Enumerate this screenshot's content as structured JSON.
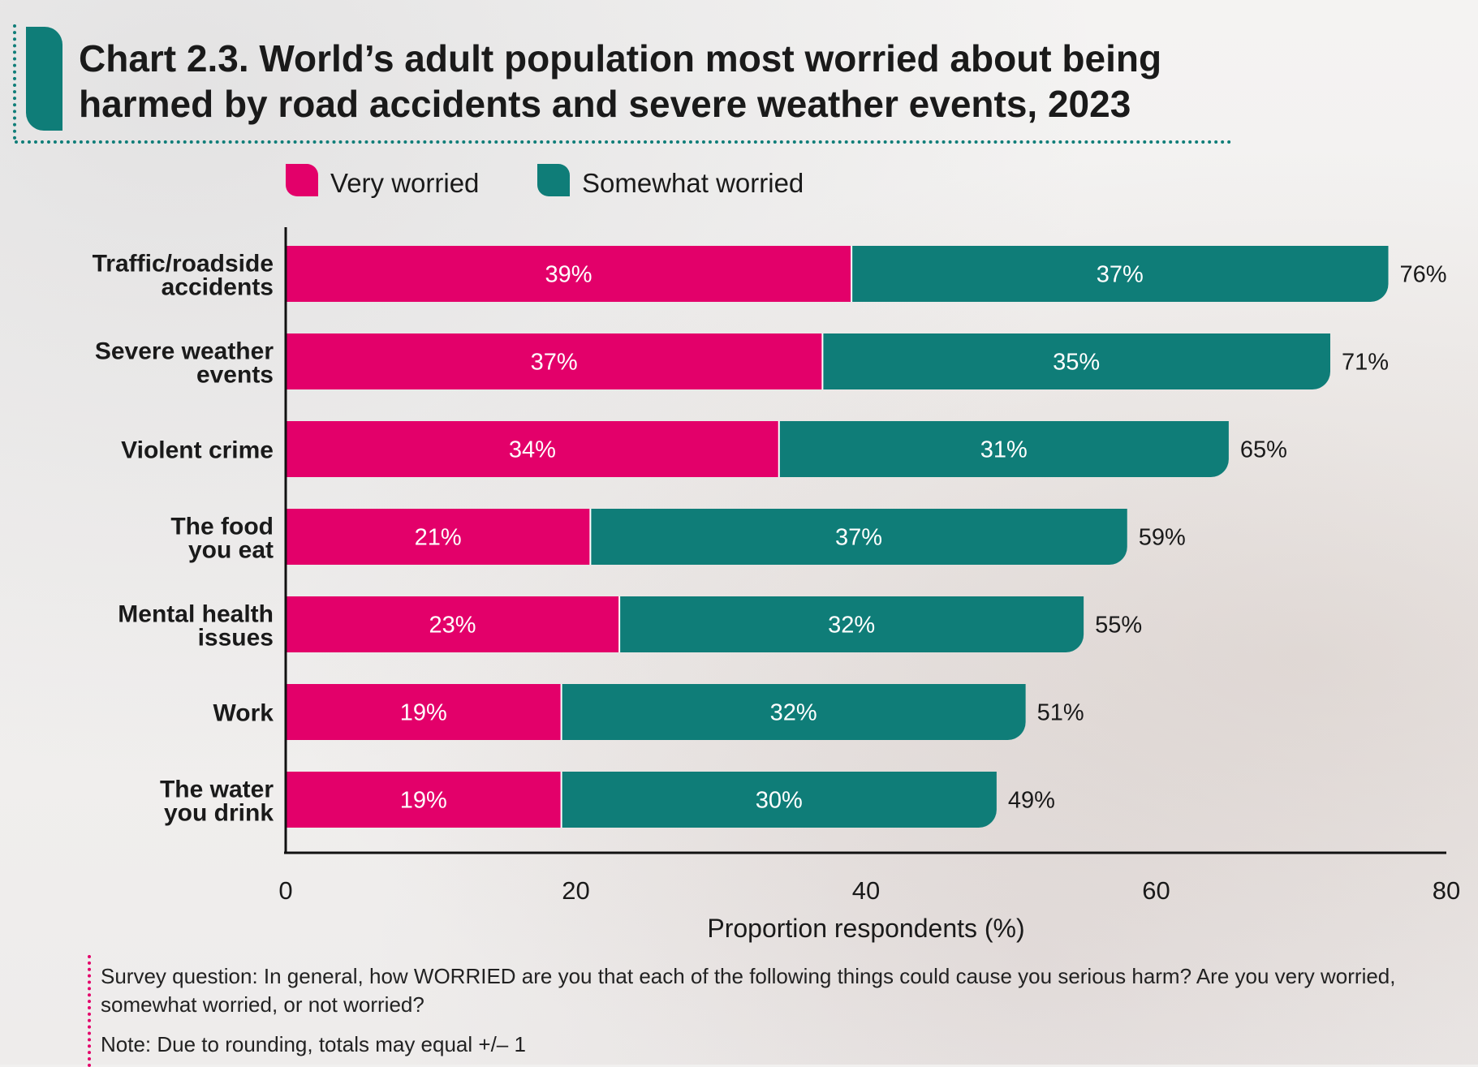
{
  "title": "Chart 2.3. World’s adult population most worried about being harmed by road accidents and severe weather events, 2023",
  "colors": {
    "very": "#e3006a",
    "somewhat": "#0f7d78",
    "accent": "#0f7d78",
    "note_accent": "#e3006a"
  },
  "chart_data": {
    "type": "bar",
    "orientation": "horizontal",
    "stacked": true,
    "title": "Chart 2.3. World’s adult population most worried about being harmed by road accidents and severe weather events, 2023",
    "xlabel": "Proportion respondents (%)",
    "ylabel": "",
    "xlim": [
      0,
      80
    ],
    "x_ticks": [
      "0",
      "20",
      "40",
      "60",
      "80"
    ],
    "legend_position": "top",
    "categories": [
      [
        "Traffic/roadside",
        "accidents"
      ],
      [
        "Severe weather",
        "events"
      ],
      [
        "Violent crime"
      ],
      [
        "The food",
        "you eat"
      ],
      [
        "Mental health",
        "issues"
      ],
      [
        "Work"
      ],
      [
        "The water",
        "you drink"
      ]
    ],
    "series": [
      {
        "name": "Very worried",
        "color": "#e3006a",
        "values": [
          39,
          37,
          34,
          21,
          23,
          19,
          19
        ],
        "labels": [
          "39%",
          "37%",
          "34%",
          "21%",
          "23%",
          "19%",
          "19%"
        ]
      },
      {
        "name": "Somewhat worried",
        "color": "#0f7d78",
        "values": [
          37,
          35,
          31,
          37,
          32,
          32,
          30
        ],
        "labels": [
          "37%",
          "35%",
          "31%",
          "37%",
          "32%",
          "32%",
          "30%"
        ]
      }
    ],
    "totals": [
      76,
      71,
      65,
      59,
      55,
      51,
      49
    ],
    "total_labels": [
      "76%",
      "71%",
      "65%",
      "59%",
      "55%",
      "51%",
      "49%"
    ]
  },
  "notes": {
    "survey": "Survey question: In general, how WORRIED are you that each of the following things could cause you serious harm? Are you very worried, somewhat worried, or not worried?",
    "rounding": "Note: Due to rounding, totals may equal +/– 1"
  }
}
